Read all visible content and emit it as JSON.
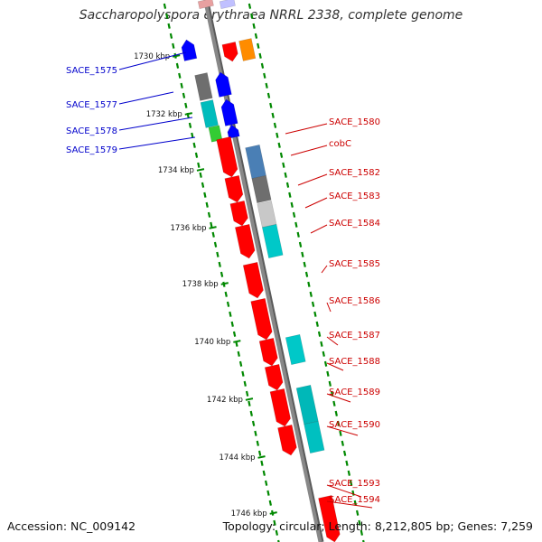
{
  "title": "Saccharopolyspora erythraea NRRL 2338, complete genome",
  "footer": {
    "accession": "Accession: NC_009142",
    "summary": "Topology: circular; Length: 8,212,805 bp; Genes: 7,259"
  },
  "colors": {
    "forward_gene": "#ff0000",
    "reverse_gene": "#0000ff",
    "forward_label": "#cc0000",
    "reverse_label": "#0000cc",
    "backbone": "#888888",
    "tick": "#008800"
  },
  "ticks": [
    "1730 kbp",
    "1732 kbp",
    "1734 kbp",
    "1736 kbp",
    "1738 kbp",
    "1740 kbp",
    "1742 kbp",
    "1744 kbp",
    "1746 kbp"
  ],
  "labels_left": [
    "SACE_1575",
    "SACE_1577",
    "SACE_1578",
    "SACE_1579"
  ],
  "labels_right": [
    "SACE_1580",
    "cobC",
    "SACE_1582",
    "SACE_1583",
    "SACE_1584",
    "SACE_1585",
    "SACE_1586",
    "SACE_1587",
    "SACE_1588",
    "SACE_1589",
    "SACE_1590",
    "SACE_1593",
    "SACE_1594"
  ]
}
